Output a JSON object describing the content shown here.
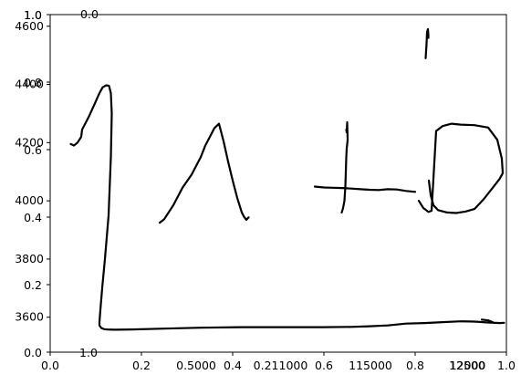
{
  "chart_data": {
    "type": "line",
    "title": "",
    "xlabel": "",
    "ylabel": "",
    "grid": false,
    "legend": "none",
    "line_color": "#000000",
    "axes": {
      "base_x": {
        "xlim": [
          0.0,
          1.0
        ],
        "xticks": [
          0.0,
          0.2,
          0.4,
          0.6,
          0.8,
          1.0
        ],
        "xtick_labels": [
          "0.0",
          "0.2",
          "0.4",
          "0.6",
          "0.8",
          "1.0"
        ],
        "ylim": [
          0.0,
          1.0
        ],
        "yticks": [
          0.0,
          0.2,
          0.4,
          0.6,
          0.8,
          1.0
        ],
        "ytick_labels": [
          "0.0",
          "0.2",
          "0.4",
          "0.6",
          "0.8",
          "1.0"
        ]
      },
      "data_axes": {
        "ylim": [
          3480,
          4640
        ],
        "yticks": [
          3600,
          3800,
          4000,
          4200,
          4400,
          4600
        ],
        "ytick_labels": [
          "3600",
          "3800",
          "4000",
          "4200",
          "4400",
          "4600"
        ]
      },
      "overlap_left": {
        "ylim": [
          0.0,
          1.0
        ],
        "yticks": [
          0.0,
          0.2,
          0.4,
          0.6,
          0.8,
          1.0
        ],
        "ytick_labels": [
          "0.0",
          "0.2",
          "0.4",
          "0.6",
          "0.8",
          "1.0"
        ]
      },
      "stray_labels": [
        {
          "text": "0.0",
          "role": "top"
        },
        {
          "text": "1.0",
          "role": "bottom-left"
        }
      ],
      "bottom_offset_ticks": [
        {
          "value": 0.32,
          "label": "0.5000"
        },
        {
          "value": 0.505,
          "label": "0.211000"
        },
        {
          "value": 0.702,
          "label": "115000"
        },
        {
          "value": 0.915,
          "label": "12000"
        },
        {
          "value": 1.17,
          "label": "12500"
        }
      ]
    },
    "series": [
      {
        "stroke": "1",
        "x": [
          0.045,
          0.052,
          0.06,
          0.068,
          0.07,
          0.085,
          0.098,
          0.108,
          0.115,
          0.123,
          0.129,
          0.133,
          0.135,
          0.133,
          0.128,
          0.12,
          0.114,
          0.11,
          0.108,
          0.108,
          0.112,
          0.118,
          0.125,
          0.14,
          0.18,
          0.25,
          0.33,
          0.42,
          0.52,
          0.6,
          0.66,
          0.7,
          0.74,
          0.78,
          0.82,
          0.86,
          0.9,
          0.93,
          0.96,
          0.985,
          0.995
        ],
        "y": [
          4195,
          4190,
          4200,
          4220,
          4245,
          4290,
          4335,
          4370,
          4390,
          4397,
          4395,
          4370,
          4300,
          4150,
          3950,
          3800,
          3700,
          3625,
          3583,
          3572,
          3563,
          3559,
          3558,
          3557,
          3558,
          3561,
          3564,
          3566,
          3566,
          3566,
          3567,
          3569,
          3572,
          3578,
          3580,
          3583,
          3586,
          3585,
          3582,
          3580,
          3581
        ]
      },
      {
        "stroke": "2",
        "x": [
          0.946,
          0.96,
          0.97
        ],
        "y": [
          3592,
          3589,
          3583
        ]
      },
      {
        "stroke": "3",
        "x": [
          0.24,
          0.25,
          0.27,
          0.29,
          0.31,
          0.33,
          0.34,
          0.35,
          0.36,
          0.37,
          0.38,
          0.39,
          0.4,
          0.41,
          0.415,
          0.42,
          0.425,
          0.43,
          0.435
        ],
        "y": [
          3925,
          3937,
          3985,
          4045,
          4090,
          4150,
          4190,
          4220,
          4250,
          4265,
          4205,
          4135,
          4070,
          4010,
          3985,
          3960,
          3945,
          3935,
          3943
        ]
      },
      {
        "stroke": "4",
        "x": [
          0.58,
          0.6,
          0.62,
          0.64,
          0.66,
          0.68,
          0.7,
          0.72,
          0.74,
          0.76,
          0.78,
          0.8
        ],
        "y": [
          4049,
          4046,
          4045,
          4044,
          4042,
          4040,
          4038,
          4037,
          4040,
          4039,
          4034,
          4031
        ]
      },
      {
        "stroke": "5",
        "x": [
          0.639,
          0.642,
          0.645,
          0.647,
          0.648,
          0.649,
          0.65,
          0.652,
          0.651,
          0.65,
          0.649
        ],
        "y": [
          3960,
          3975,
          4000,
          4050,
          4100,
          4150,
          4180,
          4210,
          4270,
          4235,
          4245
        ]
      },
      {
        "stroke": "6",
        "x": [
          0.823,
          0.825,
          0.826,
          0.828,
          0.829,
          0.829
        ],
        "y": [
          4490,
          4540,
          4580,
          4590,
          4570,
          4560
        ]
      },
      {
        "stroke": "7",
        "x": [
          0.808,
          0.812,
          0.818,
          0.824,
          0.829,
          0.836,
          0.846,
          0.86,
          0.88,
          0.9,
          0.93,
          0.96,
          0.98,
          0.99,
          0.992,
          0.985,
          0.97,
          0.95,
          0.93,
          0.91,
          0.89,
          0.87,
          0.85,
          0.84,
          0.834,
          0.83
        ],
        "y": [
          4000,
          3990,
          3975,
          3968,
          3962,
          3966,
          4240,
          4257,
          4265,
          4262,
          4260,
          4252,
          4210,
          4145,
          4095,
          4075,
          4045,
          4005,
          3972,
          3963,
          3958,
          3960,
          3968,
          3985,
          4020,
          4070
        ]
      }
    ]
  }
}
